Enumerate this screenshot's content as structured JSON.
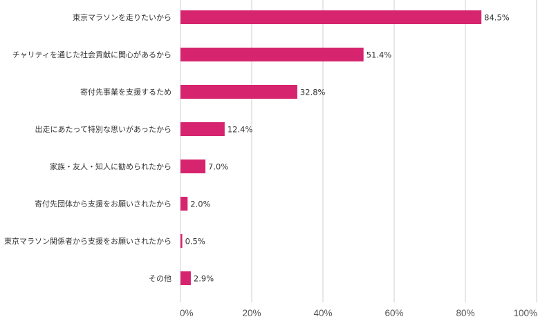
{
  "chart_data": {
    "type": "bar",
    "orientation": "horizontal",
    "categories": [
      "東京マラソンを走りたいから",
      "チャリティを通じた社会貢献に関心があるから",
      "寄付先事業を支援するため",
      "出走にあたって特別な思いがあったから",
      "家族・友人・知人に勧められたから",
      "寄付先団体から支援をお願いされたから",
      "東京マラソン関係者から支援をお願いされたから",
      "その他"
    ],
    "values": [
      84.5,
      51.4,
      32.8,
      12.4,
      7.0,
      2.0,
      0.5,
      2.9
    ],
    "value_labels": [
      "84.5%",
      "51.4%",
      "32.8%",
      "12.4%",
      "7.0%",
      "2.0%",
      "0.5%",
      "2.9%"
    ],
    "xlim": [
      0,
      100
    ],
    "x_ticks": [
      0,
      20,
      40,
      60,
      80,
      100
    ],
    "x_tick_labels": [
      "0%",
      "20%",
      "40%",
      "60%",
      "80%",
      "100%"
    ],
    "grid": true,
    "bar_color": "#d6246e",
    "title": "",
    "xlabel": "",
    "ylabel": ""
  }
}
